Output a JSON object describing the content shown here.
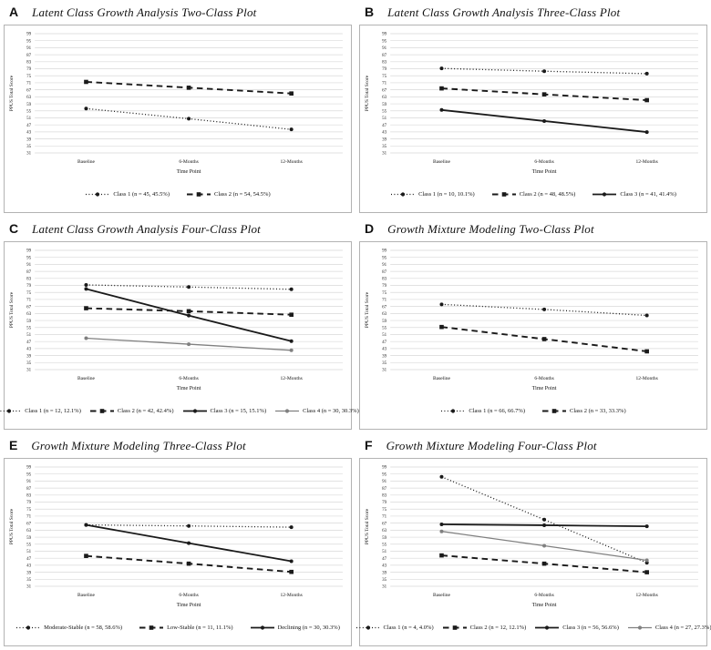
{
  "figure": {
    "x_categories": [
      "Baseline",
      "6-Months",
      "12-Months"
    ],
    "xlabel": "Time Point",
    "ylabel": "PPUS Total Score",
    "ylim": [
      31,
      99
    ],
    "ytick_step": 4,
    "colors": {
      "line_black": "#1a1a1a",
      "line_gray": "#808080",
      "gridline": "#d9d9d9"
    }
  },
  "chart_data": [
    {
      "panel": "A",
      "title": "Latent Class Growth Analysis Two-Class Plot",
      "type": "line",
      "x": [
        "Baseline",
        "6-Months",
        "12-Months"
      ],
      "xlabel": "Time Point",
      "ylabel": "PPUS Total Score",
      "ylim": [
        31,
        99
      ],
      "ytick_step": 4,
      "grid": true,
      "legend_position": "bottom",
      "series": [
        {
          "name": "Class 1 (n = 45, 45.5%)",
          "values": [
            56.3,
            50.5,
            44.4
          ],
          "line": "dotted",
          "marker": "circle",
          "color": "#1a1a1a"
        },
        {
          "name": "Class 2 (n = 54, 54.5%)",
          "values": [
            71.5,
            68.2,
            64.9
          ],
          "line": "dashed",
          "marker": "square",
          "color": "#1a1a1a"
        }
      ]
    },
    {
      "panel": "B",
      "title": "Latent Class Growth Analysis Three-Class Plot",
      "type": "line",
      "x": [
        "Baseline",
        "6-Months",
        "12-Months"
      ],
      "xlabel": "Time Point",
      "ylabel": "PPUS Total Score",
      "ylim": [
        31,
        99
      ],
      "ytick_step": 4,
      "grid": true,
      "legend_position": "bottom",
      "series": [
        {
          "name": "Class 1 (n = 10, 10.1%)",
          "values": [
            79.2,
            77.6,
            76.2
          ],
          "line": "dotted",
          "marker": "circle",
          "color": "#1a1a1a"
        },
        {
          "name": "Class 2 (n = 48, 48.5%)",
          "values": [
            67.8,
            64.4,
            61.1
          ],
          "line": "dashed",
          "marker": "square",
          "color": "#1a1a1a"
        },
        {
          "name": "Class 3 (n = 41, 41.4%)",
          "values": [
            55.5,
            49.2,
            42.9
          ],
          "line": "solid",
          "marker": "circle",
          "color": "#1a1a1a"
        }
      ]
    },
    {
      "panel": "C",
      "title": "Latent Class Growth Analysis Four-Class Plot",
      "type": "line",
      "x": [
        "Baseline",
        "6-Months",
        "12-Months"
      ],
      "xlabel": "Time Point",
      "ylabel": "PPUS Total Score",
      "ylim": [
        31,
        99
      ],
      "ytick_step": 4,
      "grid": true,
      "legend_position": "bottom",
      "series": [
        {
          "name": "Class 1 (n = 12, 12.1%)",
          "values": [
            79.3,
            78.1,
            76.8
          ],
          "line": "dotted",
          "marker": "circle",
          "color": "#1a1a1a"
        },
        {
          "name": "Class 2 (n = 42, 42.4%)",
          "values": [
            66.0,
            64.3,
            62.3
          ],
          "line": "dashed",
          "marker": "square",
          "color": "#1a1a1a"
        },
        {
          "name": "Class 3 (n = 15, 15.1%)",
          "values": [
            77.0,
            61.8,
            47.2
          ],
          "line": "solid",
          "marker": "circle",
          "color": "#1a1a1a"
        },
        {
          "name": "Class 4 (n = 30, 30.3%)",
          "values": [
            48.9,
            45.5,
            42.0
          ],
          "line": "solid",
          "marker": "circle",
          "color": "#808080"
        }
      ]
    },
    {
      "panel": "D",
      "title": "Growth Mixture Modeling Two-Class Plot",
      "type": "line",
      "x": [
        "Baseline",
        "6-Months",
        "12-Months"
      ],
      "xlabel": "Time Point",
      "ylabel": "PPUS Total Score",
      "ylim": [
        31,
        99
      ],
      "ytick_step": 4,
      "grid": true,
      "legend_position": "bottom",
      "series": [
        {
          "name": "Class 1 (n = 66, 66.7%)",
          "values": [
            68.2,
            65.3,
            61.9
          ],
          "line": "dotted",
          "marker": "circle",
          "color": "#1a1a1a"
        },
        {
          "name": "Class 2 (n = 33, 33.3%)",
          "values": [
            55.3,
            48.4,
            41.4
          ],
          "line": "dashed",
          "marker": "square",
          "color": "#1a1a1a"
        }
      ]
    },
    {
      "panel": "E",
      "title": "Growth Mixture Modeling Three-Class Plot",
      "type": "line",
      "x": [
        "Baseline",
        "6-Months",
        "12-Months"
      ],
      "xlabel": "Time Point",
      "ylabel": "PPUS Total Score",
      "ylim": [
        31,
        99
      ],
      "ytick_step": 4,
      "grid": true,
      "legend_position": "bottom",
      "series": [
        {
          "name": "Moderate-Stable (n = 58, 58.6%)",
          "values": [
            66.0,
            65.4,
            64.7
          ],
          "line": "dotted",
          "marker": "circle",
          "color": "#1a1a1a"
        },
        {
          "name": "Low-Stable (n = 11, 11.1%)",
          "values": [
            48.3,
            43.9,
            39.2
          ],
          "line": "dashed",
          "marker": "square",
          "color": "#1a1a1a"
        },
        {
          "name": "Declining (n = 30, 30.3%)",
          "values": [
            66.0,
            55.6,
            45.3
          ],
          "line": "solid",
          "marker": "circle",
          "color": "#1a1a1a"
        }
      ]
    },
    {
      "panel": "F",
      "title": "Growth Mixture Modeling Four-Class Plot",
      "type": "line",
      "x": [
        "Baseline",
        "6-Months",
        "12-Months"
      ],
      "xlabel": "Time Point",
      "ylabel": "PPUS Total Score",
      "ylim": [
        31,
        99
      ],
      "ytick_step": 4,
      "grid": true,
      "legend_position": "bottom",
      "series": [
        {
          "name": "Class 1 (n = 4, 4.0%)",
          "values": [
            93.4,
            69.0,
            44.4
          ],
          "line": "dotted",
          "marker": "circle",
          "color": "#1a1a1a"
        },
        {
          "name": "Class 2 (n = 12, 12.1%)",
          "values": [
            48.6,
            43.9,
            39.0
          ],
          "line": "dashed",
          "marker": "square",
          "color": "#1a1a1a"
        },
        {
          "name": "Class 3 (n = 56, 56.6%)",
          "values": [
            66.3,
            65.8,
            65.2
          ],
          "line": "solid",
          "marker": "circle",
          "color": "#1a1a1a"
        },
        {
          "name": "Class 4 (n = 27, 27.3%)",
          "values": [
            62.3,
            54.1,
            45.8
          ],
          "line": "solid",
          "marker": "circle",
          "color": "#808080"
        }
      ]
    }
  ]
}
